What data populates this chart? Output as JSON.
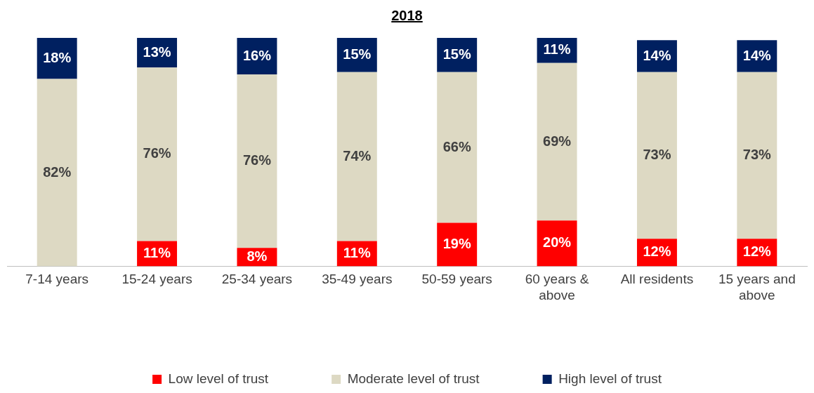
{
  "chart_data": {
    "type": "bar",
    "title": "2018",
    "stacked": true,
    "legend": "bottom",
    "grid": false,
    "categories": [
      "7-14 years",
      "15-24 years",
      "25-34 years",
      "35-49 years",
      "50-59 years",
      "60 years & above",
      "All residents",
      "15 years and above"
    ],
    "series": [
      {
        "name": "Low level of trust",
        "color": "#ff0000",
        "values": [
          null,
          11,
          8,
          11,
          19,
          20,
          12,
          12
        ],
        "value_labels": [
          null,
          "11%",
          "8%",
          "11%",
          "19%",
          "20%",
          "12%",
          "12%"
        ]
      },
      {
        "name": "Moderate level of trust",
        "color": "#ddd9c3",
        "values": [
          82,
          76,
          76,
          74,
          66,
          69,
          73,
          73
        ],
        "value_labels": [
          "82%",
          "76%",
          "76%",
          "74%",
          "66%",
          "69%",
          "73%",
          "73%"
        ]
      },
      {
        "name": "High level of trust",
        "color": "#002060",
        "values": [
          18,
          13,
          16,
          15,
          15,
          11,
          14,
          14
        ],
        "value_labels": [
          "18%",
          "13%",
          "16%",
          "15%",
          "15%",
          "11%",
          "14%",
          "14%"
        ]
      }
    ]
  }
}
